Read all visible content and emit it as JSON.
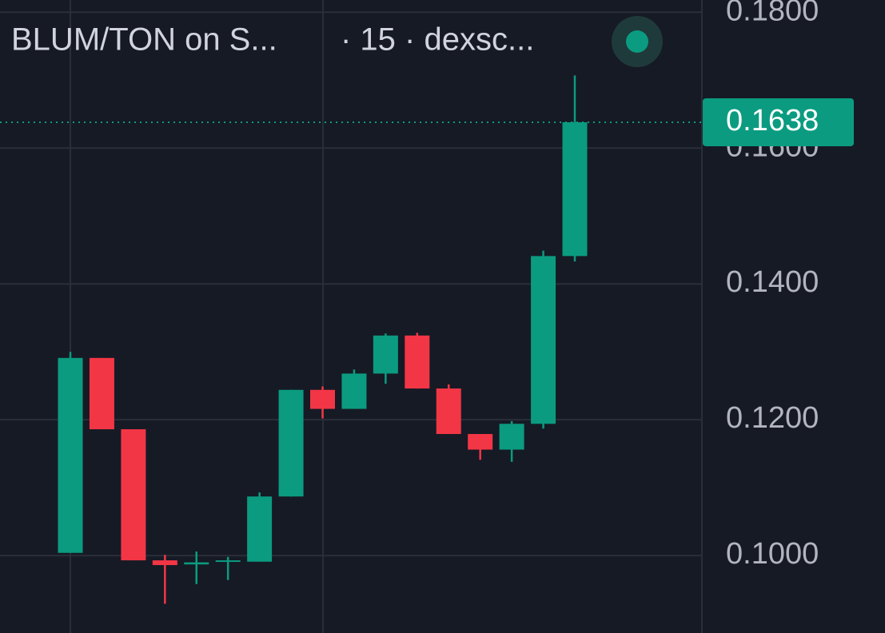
{
  "chart_data": {
    "type": "candlestick",
    "title": "BLUM/TON on S...",
    "subtitle": "· 15 · dexsc...",
    "open": [
      0.1004,
      0.1291,
      0.1186,
      0.0993,
      0.0987,
      0.0991,
      0.0991,
      0.1087,
      0.1244,
      0.1216,
      0.1268,
      0.1324,
      0.1246,
      0.1179,
      0.1156,
      0.1194,
      0.1441
    ],
    "high": [
      0.13,
      0.1291,
      0.1186,
      0.1001,
      0.1006,
      0.0998,
      0.1093,
      0.1244,
      0.1249,
      0.1274,
      0.1327,
      0.1328,
      0.1252,
      0.1179,
      0.1198,
      0.1449,
      0.1707
    ],
    "low": [
      0.1004,
      0.1186,
      0.0993,
      0.0929,
      0.0958,
      0.0964,
      0.0991,
      0.1087,
      0.1202,
      0.1216,
      0.1253,
      0.1246,
      0.1179,
      0.1141,
      0.1138,
      0.1187,
      0.1433
    ],
    "close": [
      0.1291,
      0.1186,
      0.0993,
      0.0986,
      0.099,
      0.0993,
      0.1087,
      0.1244,
      0.1216,
      0.1268,
      0.1324,
      0.1246,
      0.1179,
      0.1156,
      0.1194,
      0.1441,
      0.1638
    ],
    "up_color": "#0b9b80",
    "down_color": "#f23645",
    "last_price": 0.1638,
    "ylim": [
      0.0886,
      0.1818
    ],
    "yticks": [
      {
        "value": 0.1,
        "label": "0.1000"
      },
      {
        "value": 0.12,
        "label": "0.1200"
      },
      {
        "value": 0.14,
        "label": "0.1400"
      },
      {
        "value": 0.16,
        "label": "0.1600"
      },
      {
        "value": 0.18,
        "label": "0.1800"
      }
    ],
    "grid": true
  }
}
